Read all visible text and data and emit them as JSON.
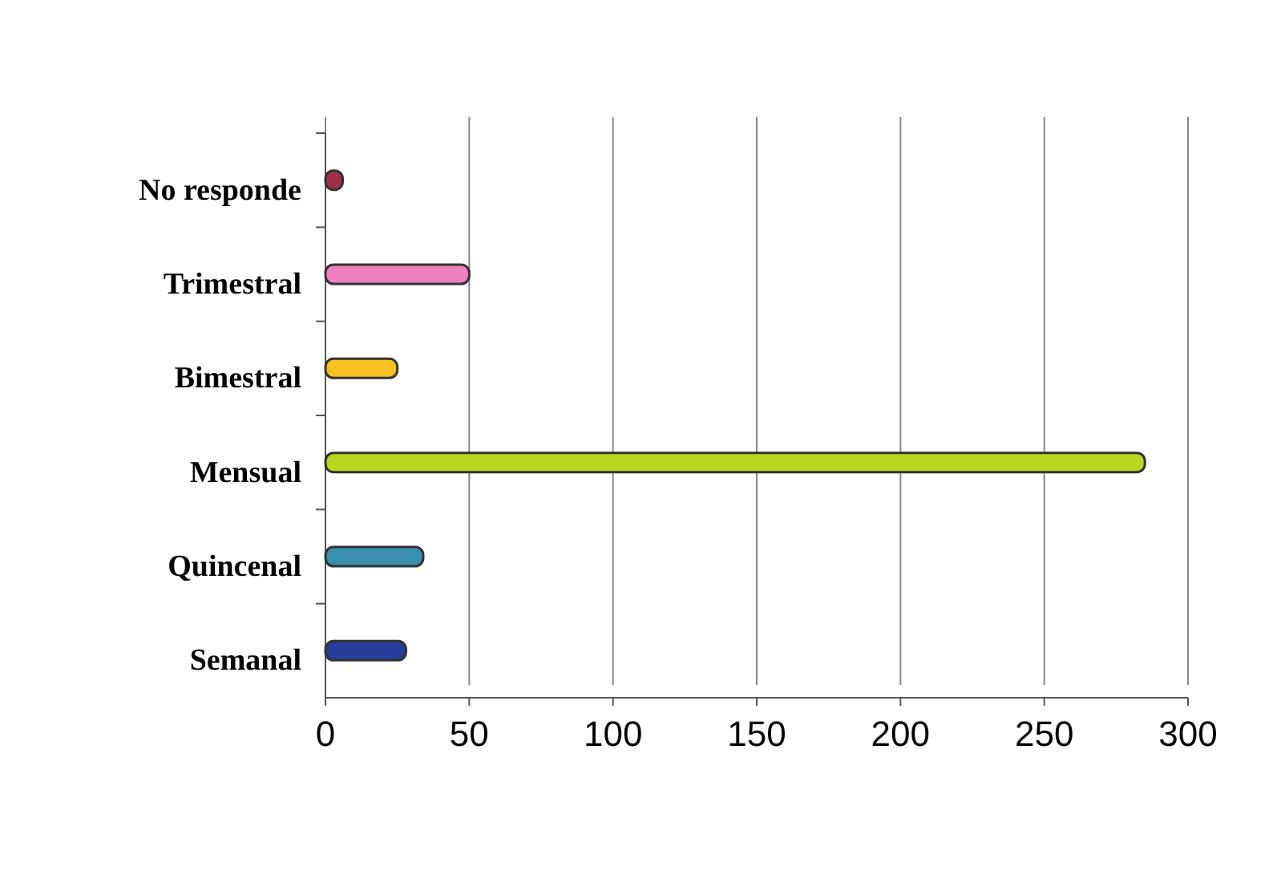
{
  "chart_data": {
    "type": "bar",
    "orientation": "horizontal",
    "categories": [
      "No responde",
      "Trimestral",
      "Bimestral",
      "Mensual",
      "Quincenal",
      "Semanal"
    ],
    "values": [
      6,
      50,
      25,
      285,
      34,
      28
    ],
    "colors": [
      "#a0304a",
      "#f080c0",
      "#f8c020",
      "#b8d820",
      "#3a8eb0",
      "#283c9c"
    ],
    "xlim": [
      0,
      300
    ],
    "xticks": [
      0,
      50,
      100,
      150,
      200,
      250,
      300
    ],
    "grid": "x"
  }
}
